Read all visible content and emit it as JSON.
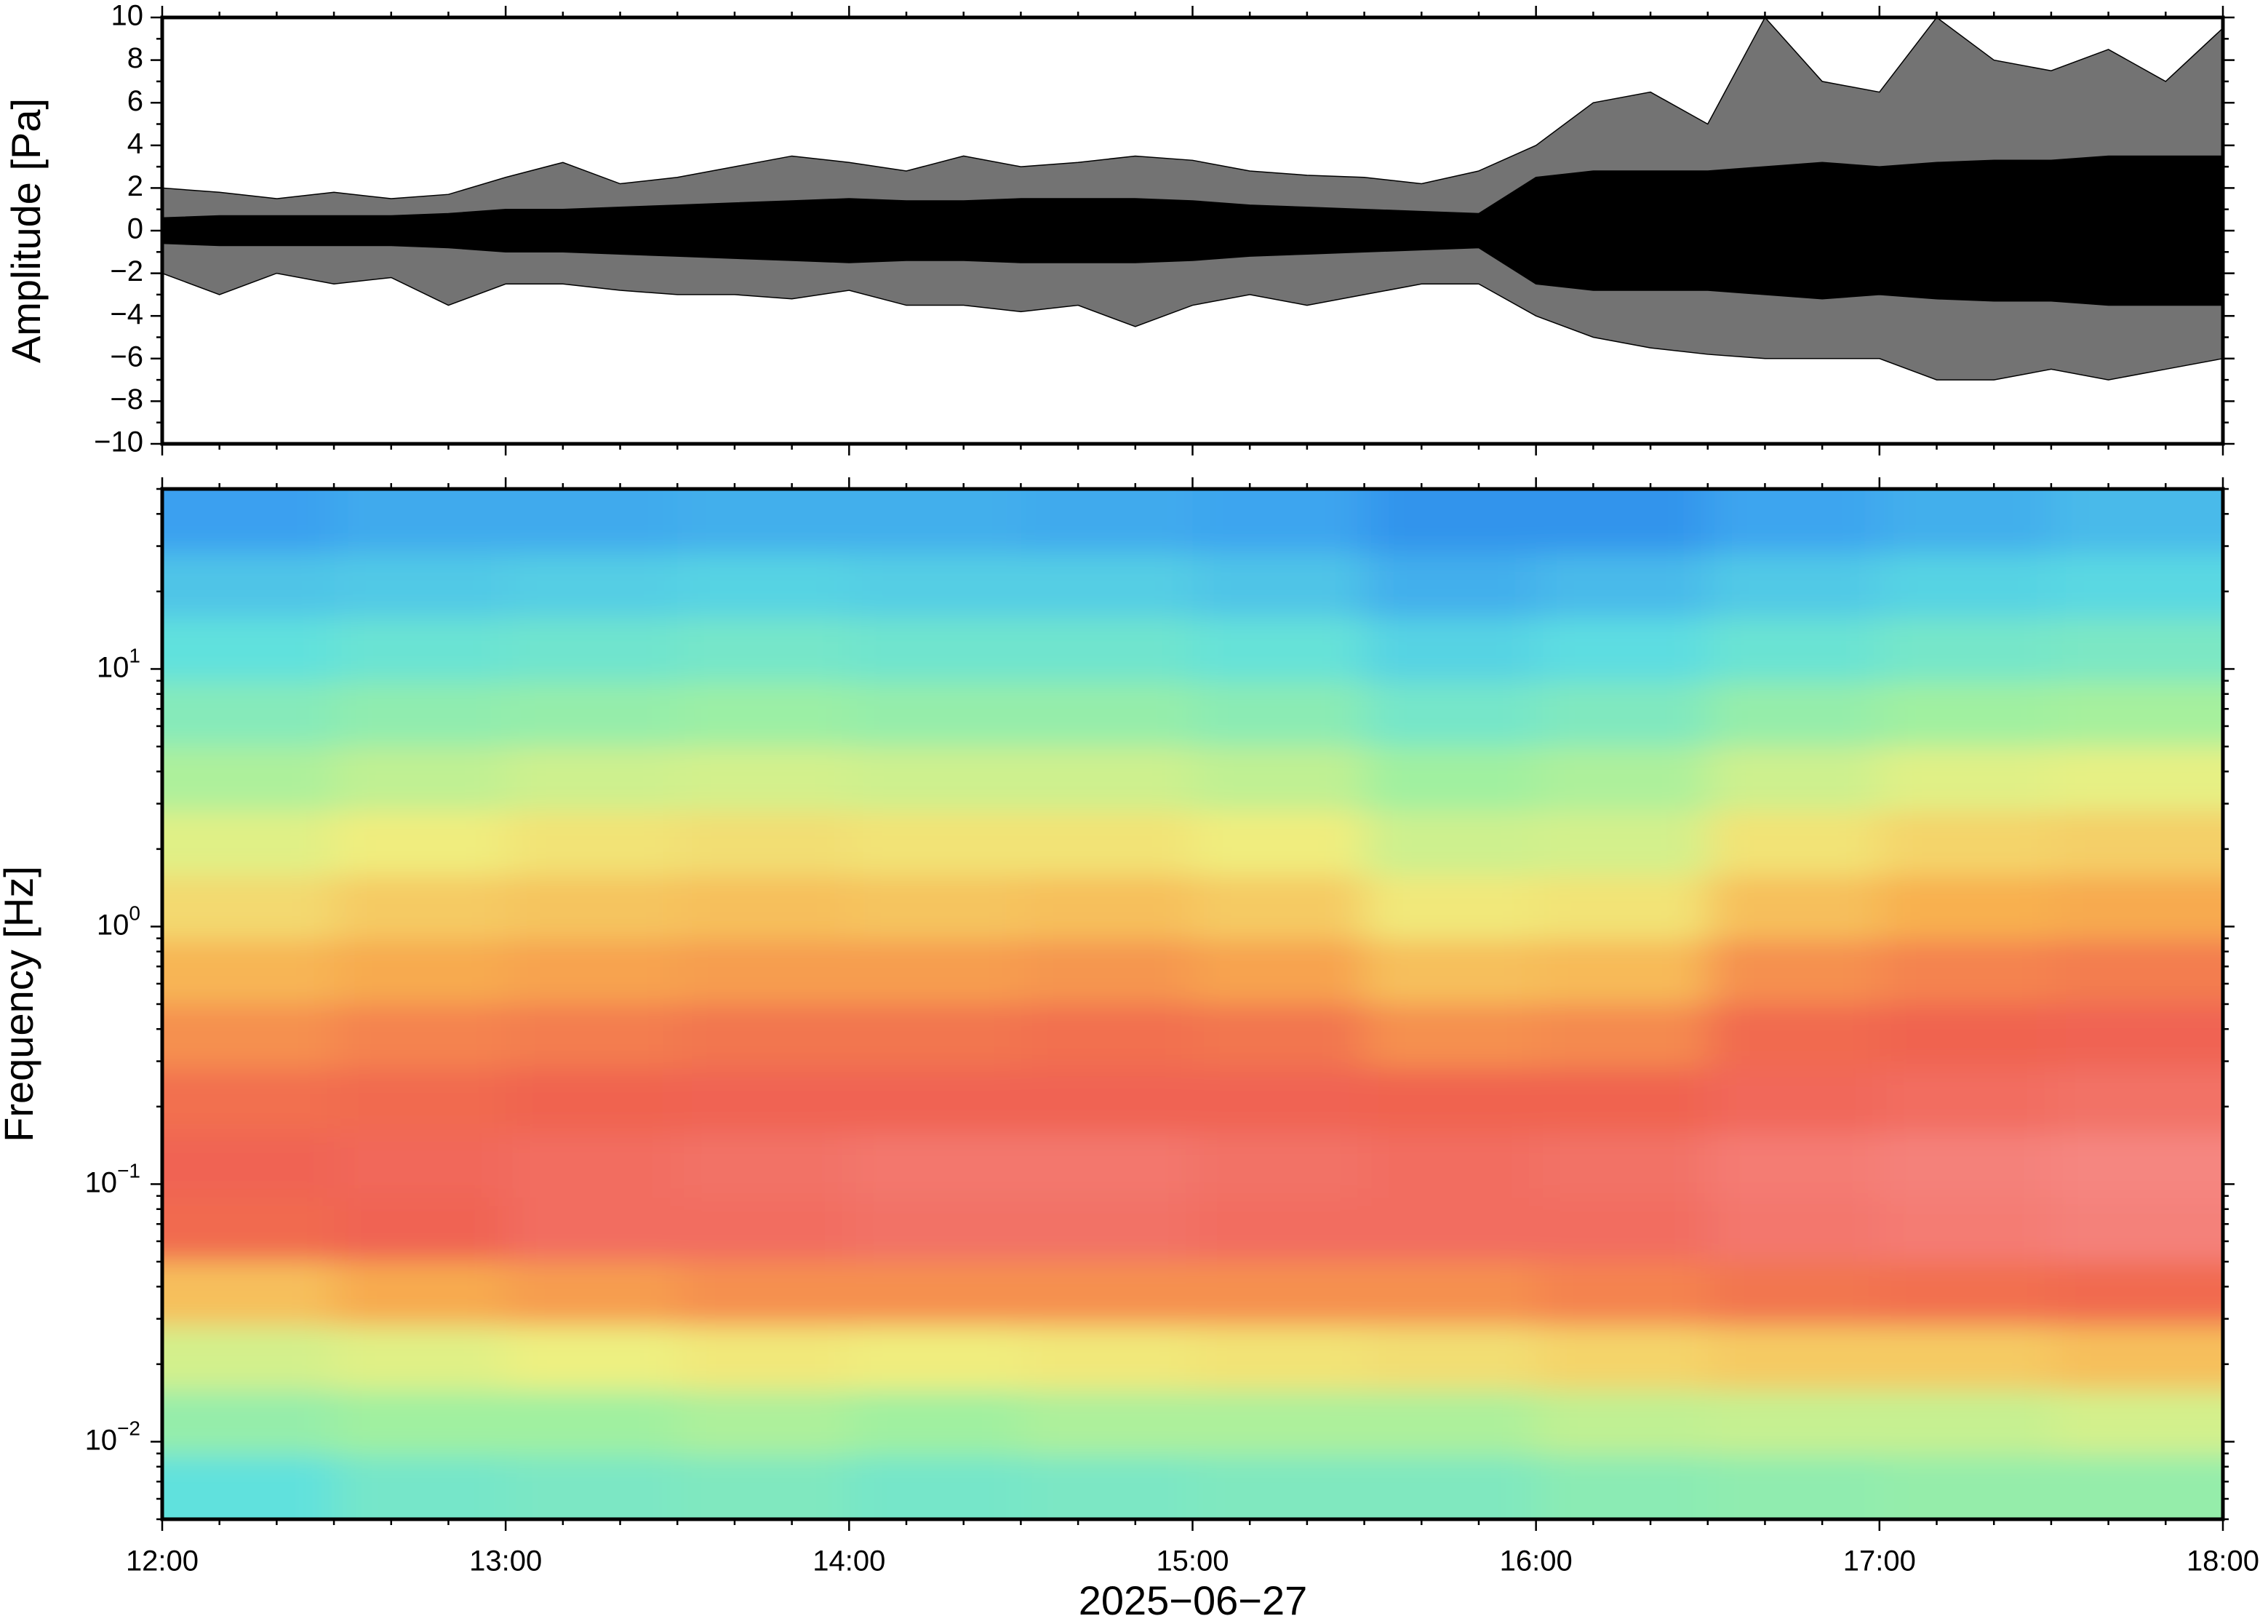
{
  "chart_data": [
    {
      "type": "waveform",
      "ylabel": "Amplitude [Pa]",
      "xlim": [
        12,
        18
      ],
      "ylim": [
        -10,
        10
      ],
      "yticks": [
        {
          "value": -10,
          "label": "−10"
        },
        {
          "value": -8,
          "label": "−8"
        },
        {
          "value": -6,
          "label": "−6"
        },
        {
          "value": -4,
          "label": "−4"
        },
        {
          "value": -2,
          "label": "−2"
        },
        0,
        2,
        4,
        6,
        8,
        10
      ],
      "x": [
        12,
        12.1667,
        12.3333,
        12.5,
        12.6667,
        12.8333,
        13,
        13.1667,
        13.3333,
        13.5,
        13.6667,
        13.8333,
        14,
        14.1667,
        14.3333,
        14.5,
        14.6667,
        14.8333,
        15,
        15.1667,
        15.3333,
        15.5,
        15.6667,
        15.8333,
        16,
        16.1667,
        16.3333,
        16.5,
        16.6667,
        16.8333,
        17,
        17.1667,
        17.3333,
        17.5,
        17.6667,
        17.8333,
        18
      ],
      "envelopes": [
        {
          "color": "#000000",
          "upper": [
            2,
            1.8,
            1.5,
            1.8,
            1.5,
            1.7,
            2.5,
            3.2,
            2.2,
            2.5,
            3,
            3.5,
            3.2,
            2.8,
            3.5,
            3,
            3.2,
            3.5,
            3.3,
            2.8,
            2.6,
            2.5,
            2.2,
            2.8,
            4,
            6,
            6.5,
            5,
            10,
            7,
            6.5,
            10,
            8,
            7.5,
            8.5,
            7,
            9.5
          ],
          "lower": [
            -2,
            -3,
            -2,
            -2.5,
            -2.2,
            -3.5,
            -2.5,
            -2.5,
            -2.8,
            -3,
            -3,
            -3.2,
            -2.8,
            -3.5,
            -3.5,
            -3.8,
            -3.5,
            -4.5,
            -3.5,
            -3,
            -3.5,
            -3,
            -2.5,
            -2.5,
            -4,
            -5,
            -5.5,
            -5.8,
            -6,
            -6,
            -6,
            -7,
            -7,
            -6.5,
            -7,
            -6.5,
            -6
          ]
        },
        {
          "color": "#000000",
          "upper": [
            0.6,
            0.7,
            0.7,
            0.7,
            0.7,
            0.8,
            1,
            1,
            1.1,
            1.2,
            1.3,
            1.4,
            1.5,
            1.4,
            1.4,
            1.5,
            1.5,
            1.5,
            1.4,
            1.2,
            1.1,
            1,
            0.9,
            0.8,
            2.5,
            2.8,
            2.8,
            2.8,
            3,
            3.2,
            3,
            3.2,
            3.3,
            3.3,
            3.5,
            3.5,
            3.5
          ],
          "lower": [
            -0.6,
            -0.7,
            -0.7,
            -0.7,
            -0.7,
            -0.8,
            -1,
            -1,
            -1.1,
            -1.2,
            -1.3,
            -1.4,
            -1.5,
            -1.4,
            -1.4,
            -1.5,
            -1.5,
            -1.5,
            -1.4,
            -1.2,
            -1.1,
            -1,
            -0.9,
            -0.8,
            -2.5,
            -2.8,
            -2.8,
            -2.8,
            -3,
            -3.2,
            -3,
            -3.2,
            -3.3,
            -3.3,
            -3.5,
            -3.5,
            -3.5
          ]
        }
      ]
    },
    {
      "type": "spectrogram",
      "ylabel": "Frequency [Hz]",
      "xlabel": "2025−06−27",
      "xlim": [
        12,
        18
      ],
      "xticks": [
        {
          "value": 12,
          "label": "12:00"
        },
        {
          "value": 13,
          "label": "13:00"
        },
        {
          "value": 14,
          "label": "14:00"
        },
        {
          "value": 15,
          "label": "15:00"
        },
        {
          "value": 16,
          "label": "16:00"
        },
        {
          "value": 17,
          "label": "17:00"
        },
        {
          "value": 18,
          "label": "18:00"
        }
      ],
      "xminor": 6,
      "ylog": true,
      "ylim": [
        0.005,
        50
      ],
      "yticks": [
        {
          "value": 0.01,
          "label": "10",
          "exponent": "−2"
        },
        {
          "value": 0.1,
          "label": "10",
          "exponent": "−1"
        },
        {
          "value": 1,
          "label": "10",
          "exponent": "0"
        },
        {
          "value": 10,
          "label": "10",
          "exponent": "1"
        }
      ],
      "colormap": [
        "#0a0a6e",
        "#1a6fe0",
        "#3ba0f0",
        "#5ee0e0",
        "#a0f0a0",
        "#f0f080",
        "#f8b050",
        "#f06050",
        "#f8a0a0"
      ],
      "zlim": [
        0,
        1
      ],
      "z": [
        [
          0.25,
          0.27,
          0.27,
          0.28,
          0.28,
          0.27,
          0.26,
          0.22,
          0.22,
          0.26,
          0.28,
          0.3
        ],
        [
          0.32,
          0.33,
          0.34,
          0.35,
          0.34,
          0.34,
          0.32,
          0.28,
          0.3,
          0.33,
          0.35,
          0.36
        ],
        [
          0.38,
          0.4,
          0.41,
          0.42,
          0.41,
          0.41,
          0.39,
          0.35,
          0.37,
          0.4,
          0.42,
          0.43
        ],
        [
          0.45,
          0.47,
          0.48,
          0.49,
          0.48,
          0.48,
          0.46,
          0.42,
          0.44,
          0.48,
          0.5,
          0.51
        ],
        [
          0.52,
          0.55,
          0.57,
          0.58,
          0.57,
          0.57,
          0.55,
          0.5,
          0.52,
          0.57,
          0.6,
          0.61
        ],
        [
          0.6,
          0.63,
          0.65,
          0.66,
          0.65,
          0.65,
          0.63,
          0.57,
          0.58,
          0.65,
          0.68,
          0.69
        ],
        [
          0.67,
          0.7,
          0.71,
          0.72,
          0.71,
          0.72,
          0.7,
          0.64,
          0.65,
          0.72,
          0.75,
          0.76
        ],
        [
          0.74,
          0.76,
          0.77,
          0.78,
          0.78,
          0.79,
          0.77,
          0.72,
          0.73,
          0.8,
          0.82,
          0.83
        ],
        [
          0.8,
          0.82,
          0.83,
          0.84,
          0.84,
          0.85,
          0.84,
          0.8,
          0.81,
          0.86,
          0.87,
          0.88
        ],
        [
          0.85,
          0.86,
          0.87,
          0.88,
          0.88,
          0.88,
          0.88,
          0.87,
          0.87,
          0.89,
          0.9,
          0.91
        ],
        [
          0.88,
          0.89,
          0.9,
          0.91,
          0.92,
          0.92,
          0.91,
          0.9,
          0.91,
          0.93,
          0.94,
          0.95
        ],
        [
          0.86,
          0.88,
          0.9,
          0.9,
          0.91,
          0.91,
          0.9,
          0.9,
          0.9,
          0.92,
          0.93,
          0.94
        ],
        [
          0.72,
          0.76,
          0.78,
          0.8,
          0.8,
          0.8,
          0.8,
          0.8,
          0.82,
          0.84,
          0.85,
          0.86
        ],
        [
          0.58,
          0.6,
          0.62,
          0.64,
          0.63,
          0.64,
          0.65,
          0.66,
          0.68,
          0.7,
          0.7,
          0.72
        ],
        [
          0.48,
          0.5,
          0.5,
          0.52,
          0.5,
          0.52,
          0.52,
          0.52,
          0.55,
          0.56,
          0.56,
          0.58
        ],
        [
          0.38,
          0.42,
          0.43,
          0.44,
          0.42,
          0.43,
          0.44,
          0.44,
          0.46,
          0.47,
          0.48,
          0.48
        ]
      ]
    }
  ]
}
